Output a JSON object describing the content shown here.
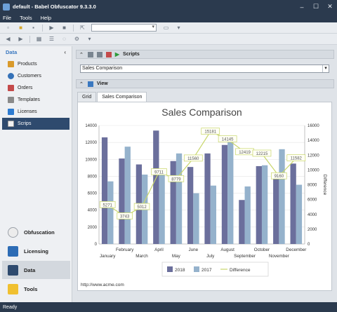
{
  "window": {
    "title": "default - Babel Obfuscator 9.3.3.0"
  },
  "menu": [
    "File",
    "Tools",
    "Help"
  ],
  "sidebar": {
    "header": "Data",
    "items": [
      {
        "label": "Products"
      },
      {
        "label": "Customers"
      },
      {
        "label": "Orders"
      },
      {
        "label": "Templates"
      },
      {
        "label": "Licenses"
      },
      {
        "label": "Scrips"
      }
    ],
    "nav": [
      {
        "label": "Obfuscation"
      },
      {
        "label": "Licensing"
      },
      {
        "label": "Data"
      },
      {
        "label": "Tools"
      }
    ]
  },
  "scripts_panel": {
    "title": "Scripts",
    "selected": "Sales Comparison"
  },
  "view_panel": {
    "title": "View",
    "tabs": [
      "Grid",
      "Sales Comparison"
    ]
  },
  "footer_url": "http://www.acme.com",
  "status": "Ready",
  "chart_data": {
    "type": "bar",
    "title": "Sales Comparison",
    "categories": [
      "January",
      "February",
      "March",
      "April",
      "May",
      "June",
      "July",
      "August",
      "September",
      "October",
      "November",
      "December"
    ],
    "series": [
      {
        "name": "2018",
        "color": "#6b6f9c",
        "values": [
          12600,
          10100,
          9400,
          13400,
          9800,
          9100,
          10700,
          11700,
          5200,
          9200,
          8200,
          9500
        ]
      },
      {
        "name": "2017",
        "color": "#95b2cc",
        "values": [
          7400,
          11500,
          8200,
          8700,
          10700,
          6000,
          6900,
          12700,
          6800,
          9300,
          11200,
          7000
        ]
      }
    ],
    "line": {
      "name": "Difference",
      "color": "#c8d66a",
      "values": [
        5271,
        3743,
        5012,
        9711,
        8779,
        11560,
        15181,
        14145,
        12419,
        12215,
        9160,
        11582
      ],
      "labels": [
        "5271",
        "3743",
        "5012",
        "9711",
        "8779",
        "11560",
        "15181",
        "14145",
        "12419",
        "12215",
        "9160",
        "11582"
      ]
    },
    "ylim": [
      0,
      14000
    ],
    "yticks": [
      "0",
      "2000",
      "4000",
      "6000",
      "8000",
      "10000",
      "12000",
      "14000"
    ],
    "y2lim": [
      0,
      16000
    ],
    "y2ticks": [
      "0",
      "2000",
      "4000",
      "6000",
      "8000",
      "10000",
      "12000",
      "14000",
      "16000"
    ],
    "y2label": "Difference",
    "legend": "bottom"
  }
}
